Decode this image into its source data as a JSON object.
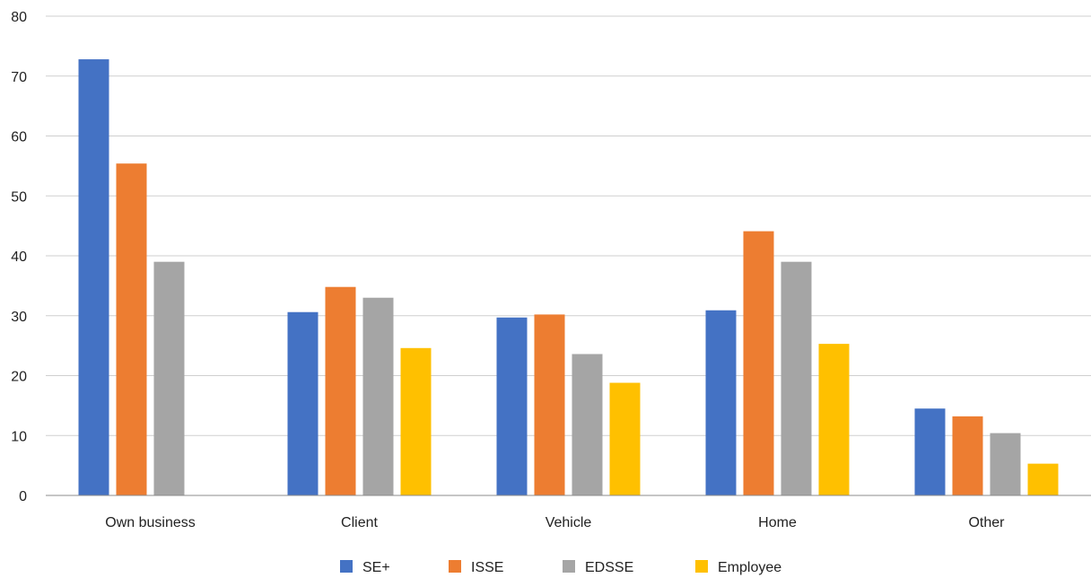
{
  "chart_data": {
    "type": "bar",
    "categories": [
      "Own business",
      "Client",
      "Vehicle",
      "Home",
      "Other"
    ],
    "series": [
      {
        "name": "SE+",
        "color": "#4472c4",
        "values": [
          72.8,
          30.6,
          29.7,
          30.9,
          14.5
        ]
      },
      {
        "name": "ISSE",
        "color": "#ed7d31",
        "values": [
          55.4,
          34.8,
          30.2,
          44.1,
          13.2
        ]
      },
      {
        "name": "EDSSE",
        "color": "#a5a5a5",
        "values": [
          39.0,
          33.0,
          23.6,
          39.0,
          10.4
        ]
      },
      {
        "name": "Employee",
        "color": "#ffc000",
        "values": [
          null,
          24.6,
          18.8,
          25.3,
          5.3
        ]
      }
    ],
    "yticks": [
      0,
      10,
      20,
      30,
      40,
      50,
      60,
      70,
      80
    ],
    "ylim": [
      0,
      80
    ],
    "grid": true,
    "legend_position": "bottom"
  }
}
